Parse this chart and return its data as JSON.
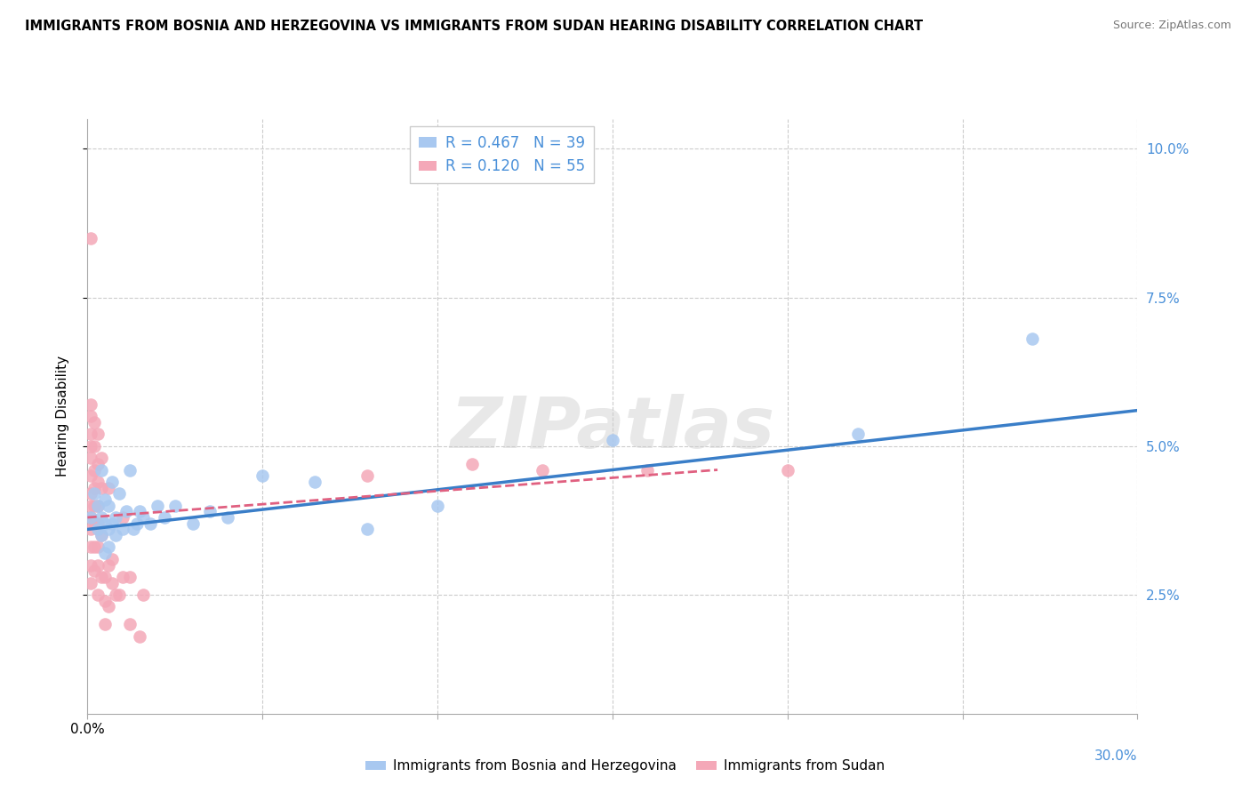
{
  "title": "IMMIGRANTS FROM BOSNIA AND HERZEGOVINA VS IMMIGRANTS FROM SUDAN HEARING DISABILITY CORRELATION CHART",
  "source": "Source: ZipAtlas.com",
  "ylabel": "Hearing Disability",
  "legend_label1": "Immigrants from Bosnia and Herzegovina",
  "legend_label2": "Immigrants from Sudan",
  "bosnia_color": "#A8C8F0",
  "sudan_color": "#F4A8B8",
  "line_bosnia_color": "#3A7EC8",
  "line_sudan_color": "#E06080",
  "right_tick_color": "#4A90D9",
  "background_color": "#FFFFFF",
  "grid_color": "#CCCCCC",
  "watermark": "ZIPatlas",
  "xlim": [
    0.0,
    0.3
  ],
  "ylim": [
    0.005,
    0.105
  ],
  "yticks": [
    0.025,
    0.05,
    0.075,
    0.1
  ],
  "ytick_labels": [
    "2.5%",
    "5.0%",
    "7.5%",
    "10.0%"
  ],
  "bosnia_scatter": [
    [
      0.001,
      0.038
    ],
    [
      0.002,
      0.042
    ],
    [
      0.003,
      0.036
    ],
    [
      0.003,
      0.04
    ],
    [
      0.004,
      0.035
    ],
    [
      0.004,
      0.038
    ],
    [
      0.004,
      0.046
    ],
    [
      0.005,
      0.032
    ],
    [
      0.005,
      0.037
    ],
    [
      0.005,
      0.041
    ],
    [
      0.006,
      0.033
    ],
    [
      0.006,
      0.036
    ],
    [
      0.006,
      0.04
    ],
    [
      0.007,
      0.037
    ],
    [
      0.007,
      0.044
    ],
    [
      0.008,
      0.035
    ],
    [
      0.008,
      0.038
    ],
    [
      0.009,
      0.042
    ],
    [
      0.01,
      0.036
    ],
    [
      0.011,
      0.039
    ],
    [
      0.012,
      0.046
    ],
    [
      0.013,
      0.036
    ],
    [
      0.014,
      0.037
    ],
    [
      0.015,
      0.039
    ],
    [
      0.016,
      0.038
    ],
    [
      0.018,
      0.037
    ],
    [
      0.02,
      0.04
    ],
    [
      0.022,
      0.038
    ],
    [
      0.025,
      0.04
    ],
    [
      0.03,
      0.037
    ],
    [
      0.035,
      0.039
    ],
    [
      0.04,
      0.038
    ],
    [
      0.05,
      0.045
    ],
    [
      0.065,
      0.044
    ],
    [
      0.08,
      0.036
    ],
    [
      0.1,
      0.04
    ],
    [
      0.15,
      0.051
    ],
    [
      0.22,
      0.052
    ],
    [
      0.27,
      0.068
    ]
  ],
  "sudan_scatter": [
    [
      0.001,
      0.085
    ],
    [
      0.001,
      0.057
    ],
    [
      0.001,
      0.055
    ],
    [
      0.001,
      0.052
    ],
    [
      0.001,
      0.05
    ],
    [
      0.001,
      0.048
    ],
    [
      0.001,
      0.045
    ],
    [
      0.001,
      0.042
    ],
    [
      0.001,
      0.04
    ],
    [
      0.001,
      0.038
    ],
    [
      0.001,
      0.036
    ],
    [
      0.001,
      0.033
    ],
    [
      0.001,
      0.03
    ],
    [
      0.001,
      0.027
    ],
    [
      0.002,
      0.054
    ],
    [
      0.002,
      0.05
    ],
    [
      0.002,
      0.046
    ],
    [
      0.002,
      0.043
    ],
    [
      0.002,
      0.04
    ],
    [
      0.002,
      0.037
    ],
    [
      0.002,
      0.033
    ],
    [
      0.002,
      0.029
    ],
    [
      0.003,
      0.052
    ],
    [
      0.003,
      0.047
    ],
    [
      0.003,
      0.044
    ],
    [
      0.003,
      0.04
    ],
    [
      0.003,
      0.037
    ],
    [
      0.003,
      0.033
    ],
    [
      0.003,
      0.03
    ],
    [
      0.003,
      0.025
    ],
    [
      0.004,
      0.048
    ],
    [
      0.004,
      0.043
    ],
    [
      0.004,
      0.035
    ],
    [
      0.004,
      0.028
    ],
    [
      0.005,
      0.028
    ],
    [
      0.005,
      0.024
    ],
    [
      0.005,
      0.02
    ],
    [
      0.006,
      0.043
    ],
    [
      0.006,
      0.03
    ],
    [
      0.006,
      0.023
    ],
    [
      0.007,
      0.031
    ],
    [
      0.007,
      0.027
    ],
    [
      0.008,
      0.025
    ],
    [
      0.009,
      0.025
    ],
    [
      0.01,
      0.038
    ],
    [
      0.01,
      0.028
    ],
    [
      0.012,
      0.028
    ],
    [
      0.012,
      0.02
    ],
    [
      0.015,
      0.018
    ],
    [
      0.016,
      0.025
    ],
    [
      0.08,
      0.045
    ],
    [
      0.11,
      0.047
    ],
    [
      0.13,
      0.046
    ],
    [
      0.16,
      0.046
    ],
    [
      0.2,
      0.046
    ]
  ],
  "bosnia_line": {
    "x0": 0.0,
    "x1": 0.3,
    "y0": 0.036,
    "y1": 0.056
  },
  "sudan_line": {
    "x0": 0.0,
    "x1": 0.18,
    "y0": 0.038,
    "y1": 0.046
  }
}
